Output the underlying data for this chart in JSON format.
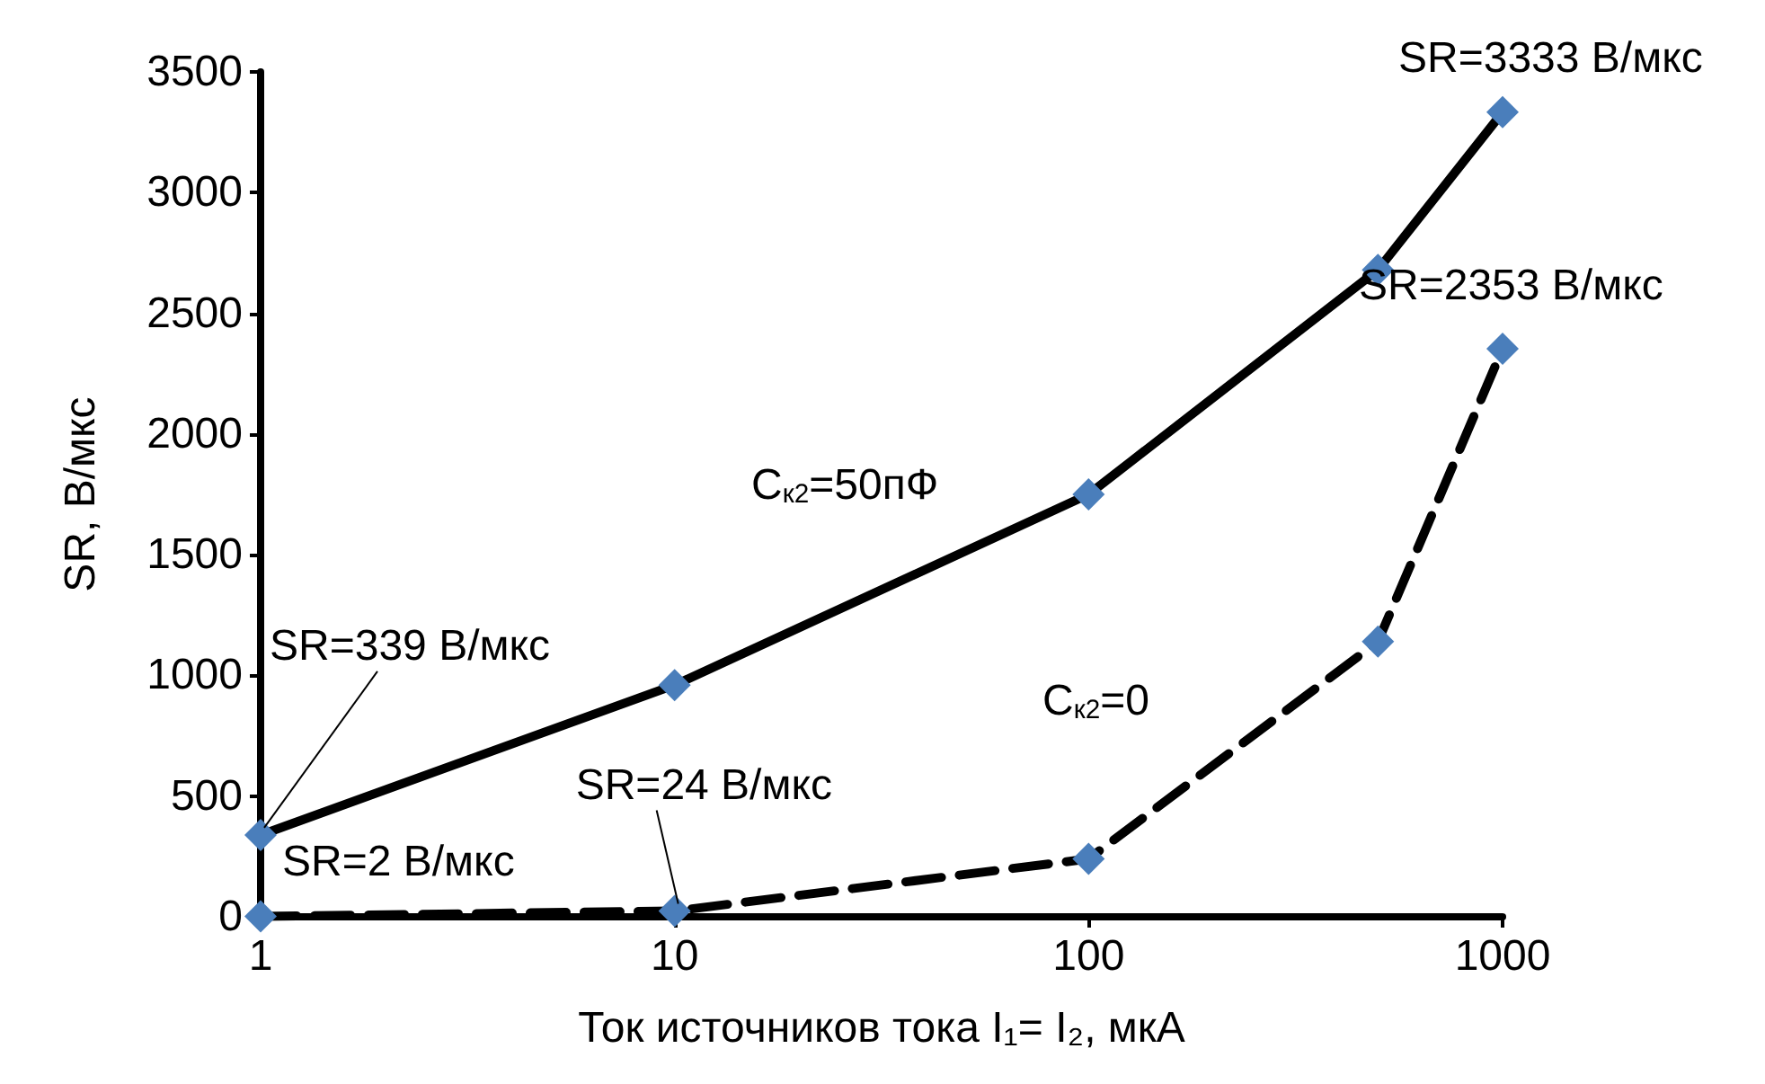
{
  "chart_data": {
    "type": "line",
    "xlabel": "Ток источников тока I₁= I₂, мкА",
    "ylabel": "SR, В/мкс",
    "log": "x",
    "xlim": [
      1,
      1000
    ],
    "xticks": [
      1,
      10,
      100,
      1000
    ],
    "ylim": [
      0,
      3500
    ],
    "yticks": [
      0,
      500,
      1000,
      1500,
      2000,
      2500,
      3000,
      3500
    ],
    "grid": false,
    "marker": "diamond",
    "series": [
      {
        "color": "#000000",
        "line_style": "solid",
        "x": [
          1,
          10,
          100,
          500,
          1000
        ],
        "values": [
          339,
          960,
          1750,
          2680,
          3333
        ],
        "colors": [
          "#4a7ebb",
          "#4a7ebb",
          "#4a7ebb",
          "#4a7ebb",
          "#4a7ebb"
        ]
      },
      {
        "color": "#000000",
        "line_style": "dashed",
        "x": [
          1,
          10,
          100,
          500,
          1000
        ],
        "values": [
          2,
          24,
          240,
          1140,
          2353
        ],
        "colors": [
          "#4a7ebb",
          "#4a7ebb",
          "#4a7ebb",
          "#4a7ebb",
          "#4a7ebb"
        ]
      }
    ],
    "annotations": [
      {
        "text": "SR=3333 В/мкс",
        "x": 1000,
        "y": 3333
      },
      {
        "text": "SR=2353 В/мкс",
        "x": 1000,
        "y": 2353
      },
      "C$_{к2}$=50пФ",
      "C$_{к2}$=0",
      {
        "text": "SR=339 В/мкс",
        "x": 1,
        "y": 339
      },
      {
        "text": "SR=24 В/мкс",
        "x": 10,
        "y": 24
      },
      {
        "text": "SR=2 В/мкс",
        "x": 1,
        "y": 2
      }
    ]
  }
}
